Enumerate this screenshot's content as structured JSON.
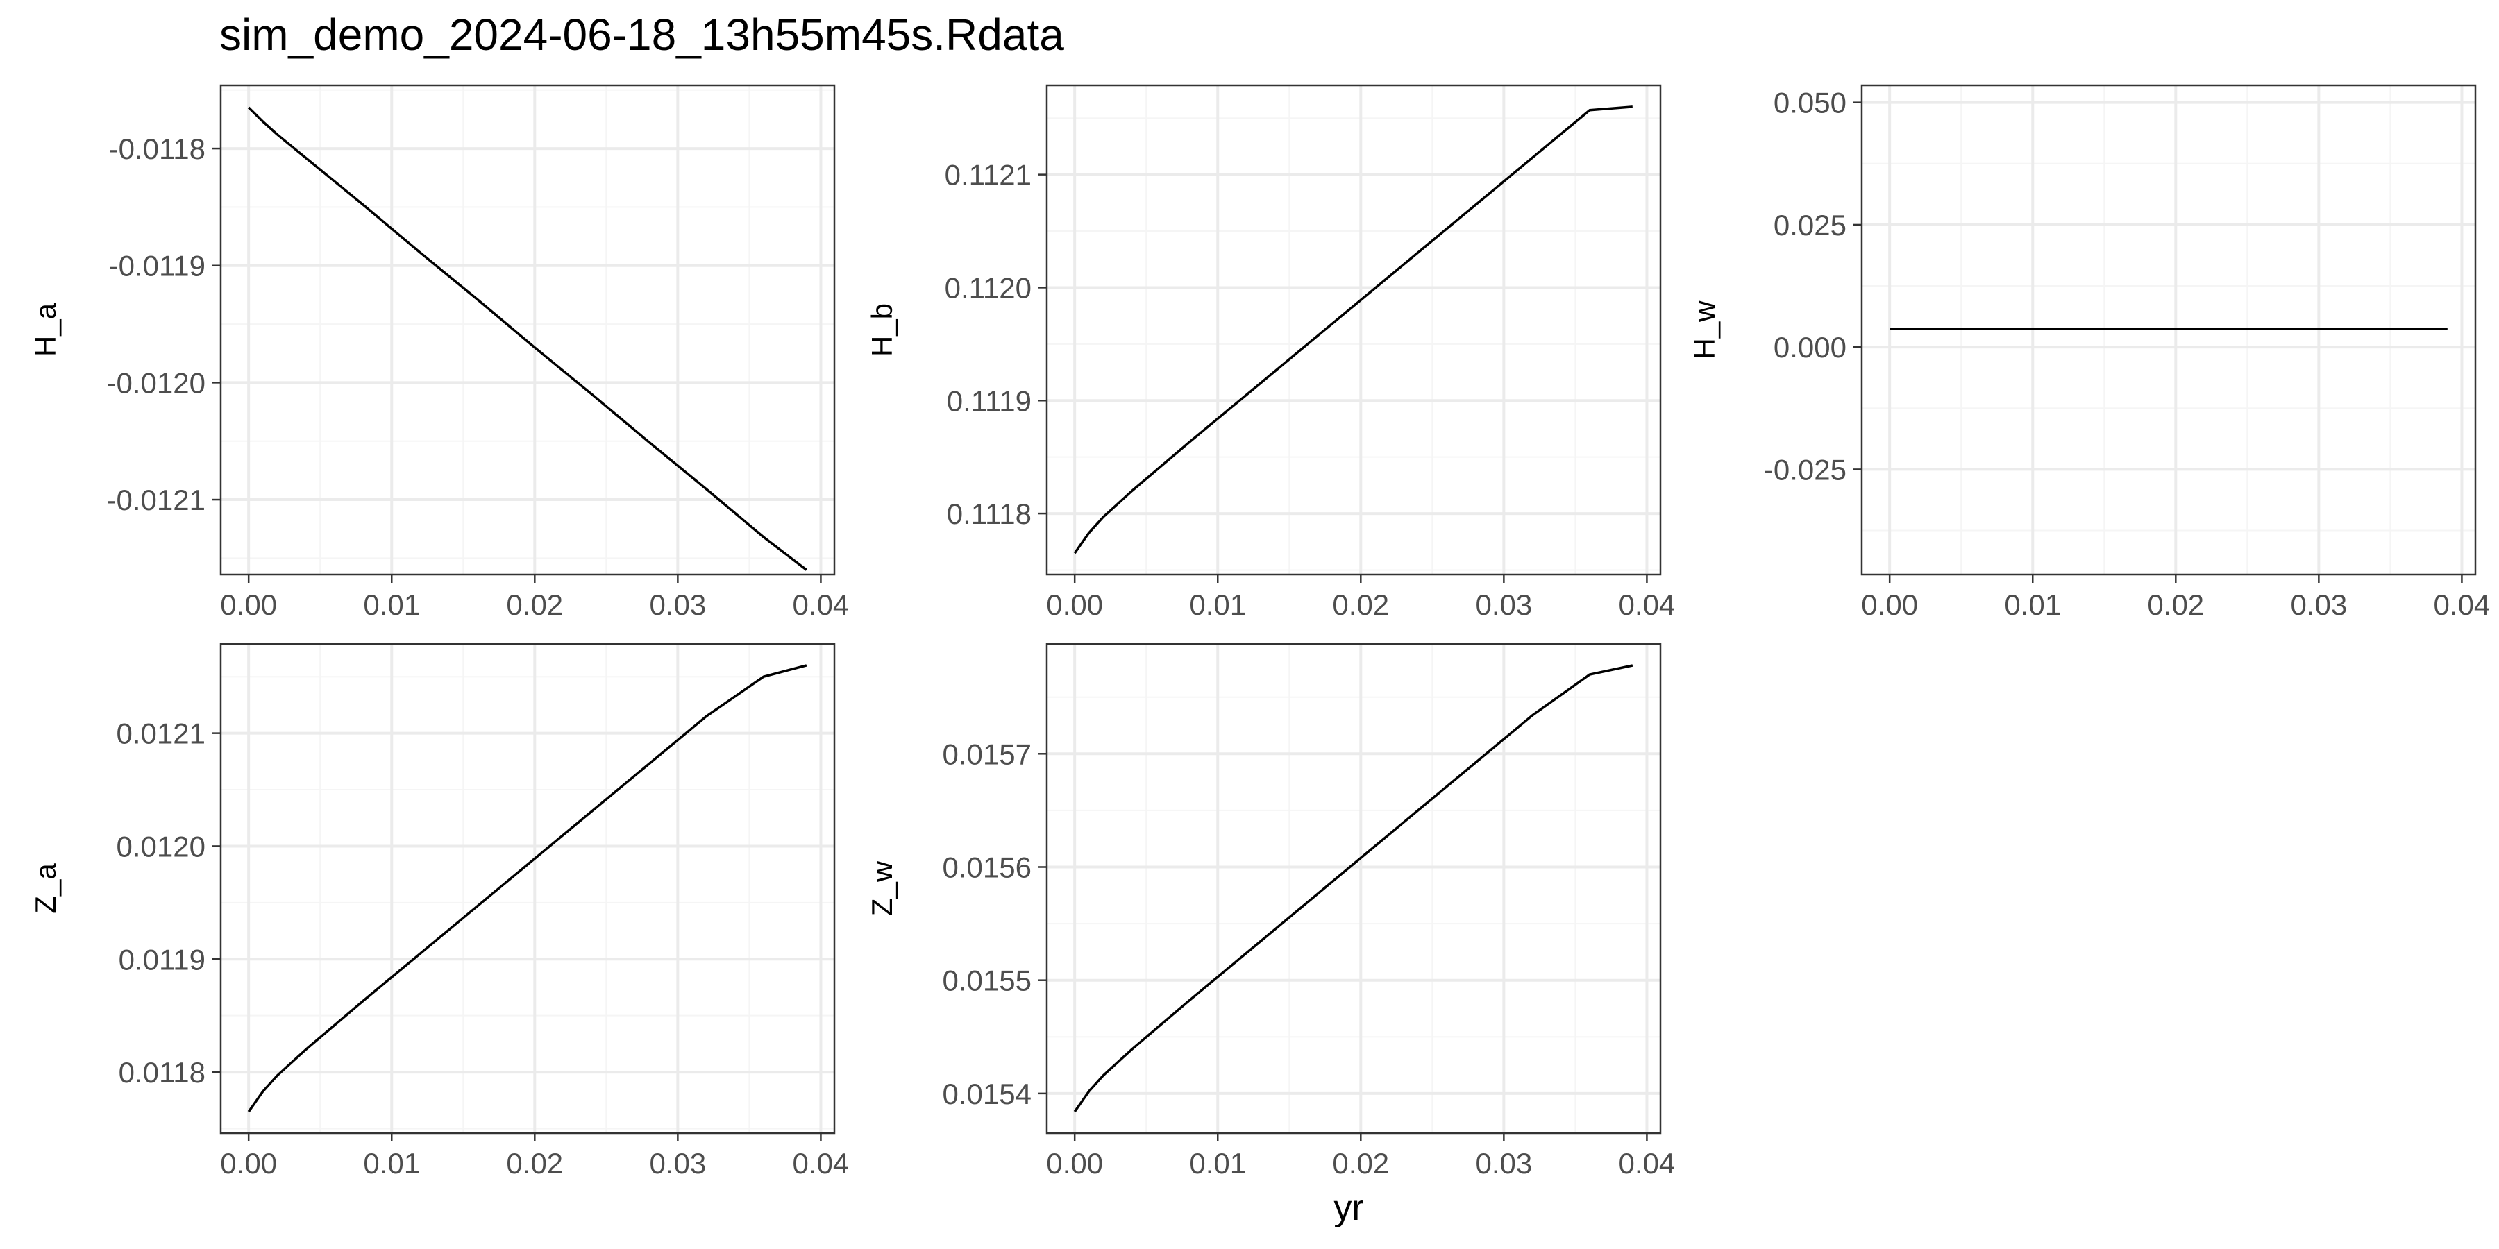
{
  "figure": {
    "title": "sim_demo_2024-06-18_13h55m45s.Rdata",
    "xlabel": "yr"
  },
  "colors": {
    "line": "#000000",
    "panel_border": "#333333",
    "grid_major": "#ebebeb",
    "grid_minor": "#f5f5f5",
    "tick_text": "#4d4d4d"
  },
  "chart_data": [
    {
      "type": "line",
      "ylabel": "H_a",
      "xlim": [
        -0.00195,
        0.04095
      ],
      "ylim": [
        -0.012164,
        -0.011746
      ],
      "xticks": [
        0.0,
        0.01,
        0.02,
        0.03,
        0.04
      ],
      "xtick_labels": [
        "0.00",
        "0.01",
        "0.02",
        "0.03",
        "0.04"
      ],
      "yticks": [
        -0.0118,
        -0.0119,
        -0.012,
        -0.0121
      ],
      "ytick_labels": [
        "-0.0118",
        "-0.0119",
        "-0.0120",
        "-0.0121"
      ],
      "grid": true,
      "x": [
        0.0,
        0.001,
        0.002,
        0.004,
        0.008,
        0.012,
        0.016,
        0.02,
        0.024,
        0.028,
        0.032,
        0.036,
        0.039
      ],
      "y": [
        -0.011765,
        -0.011777,
        -0.011788,
        -0.011808,
        -0.011848,
        -0.011889,
        -0.011929,
        -0.01197,
        -0.01201,
        -0.012051,
        -0.012091,
        -0.012132,
        -0.01216
      ]
    },
    {
      "type": "line",
      "ylabel": "H_b",
      "xlim": [
        -0.00195,
        0.04095
      ],
      "ylim": [
        0.111746,
        0.112179
      ],
      "xticks": [
        0.0,
        0.01,
        0.02,
        0.03,
        0.04
      ],
      "xtick_labels": [
        "0.00",
        "0.01",
        "0.02",
        "0.03",
        "0.04"
      ],
      "yticks": [
        0.1118,
        0.1119,
        0.112,
        0.1121
      ],
      "ytick_labels": [
        "0.1118",
        "0.1119",
        "0.1120",
        "0.1121"
      ],
      "grid": true,
      "x": [
        0.0,
        0.001,
        0.002,
        0.004,
        0.008,
        0.012,
        0.016,
        0.02,
        0.024,
        0.028,
        0.032,
        0.036,
        0.039
      ],
      "y": [
        0.111765,
        0.111783,
        0.111797,
        0.11182,
        0.111863,
        0.111905,
        0.111947,
        0.111989,
        0.112031,
        0.112073,
        0.112115,
        0.112157,
        0.11216
      ]
    },
    {
      "type": "line",
      "ylabel": "H_w",
      "xlim": [
        -0.00195,
        0.04095
      ],
      "ylim": [
        -0.0465,
        0.0535
      ],
      "xticks": [
        0.0,
        0.01,
        0.02,
        0.03,
        0.04
      ],
      "xtick_labels": [
        "0.00",
        "0.01",
        "0.02",
        "0.03",
        "0.04"
      ],
      "yticks": [
        0.05,
        0.025,
        0.0,
        -0.025
      ],
      "ytick_labels": [
        "0.050",
        "0.025",
        "0.000",
        "-0.025"
      ],
      "grid": true,
      "x": [
        0.0,
        0.039
      ],
      "y": [
        0.0037,
        0.0037
      ]
    },
    {
      "type": "line",
      "ylabel": "Z_a",
      "xlim": [
        -0.00195,
        0.04095
      ],
      "ylim": [
        0.011746,
        0.012179
      ],
      "xticks": [
        0.0,
        0.01,
        0.02,
        0.03,
        0.04
      ],
      "xtick_labels": [
        "0.00",
        "0.01",
        "0.02",
        "0.03",
        "0.04"
      ],
      "yticks": [
        0.0121,
        0.012,
        0.0119,
        0.0118
      ],
      "ytick_labels": [
        "0.0121",
        "0.0120",
        "0.0119",
        "0.0118"
      ],
      "grid": true,
      "x": [
        0.0,
        0.001,
        0.002,
        0.004,
        0.008,
        0.012,
        0.016,
        0.02,
        0.024,
        0.028,
        0.032,
        0.036,
        0.039
      ],
      "y": [
        0.011765,
        0.011783,
        0.011797,
        0.01182,
        0.011863,
        0.011905,
        0.011947,
        0.011989,
        0.012031,
        0.012073,
        0.012115,
        0.01215,
        0.01216
      ]
    },
    {
      "type": "line",
      "ylabel": "Z_w",
      "xlim": [
        -0.00195,
        0.04095
      ],
      "ylim": [
        0.015365,
        0.015797
      ],
      "xticks": [
        0.0,
        0.01,
        0.02,
        0.03,
        0.04
      ],
      "xtick_labels": [
        "0.00",
        "0.01",
        "0.02",
        "0.03",
        "0.04"
      ],
      "yticks": [
        0.0157,
        0.0156,
        0.0155,
        0.0154
      ],
      "ytick_labels": [
        "0.0157",
        "0.0156",
        "0.0155",
        "0.0154"
      ],
      "grid": true,
      "x": [
        0.0,
        0.001,
        0.002,
        0.004,
        0.008,
        0.012,
        0.016,
        0.02,
        0.024,
        0.028,
        0.032,
        0.036,
        0.039
      ],
      "y": [
        0.015384,
        0.015402,
        0.015416,
        0.015439,
        0.015482,
        0.015524,
        0.015566,
        0.015608,
        0.01565,
        0.015692,
        0.015734,
        0.01577,
        0.015778
      ]
    }
  ]
}
